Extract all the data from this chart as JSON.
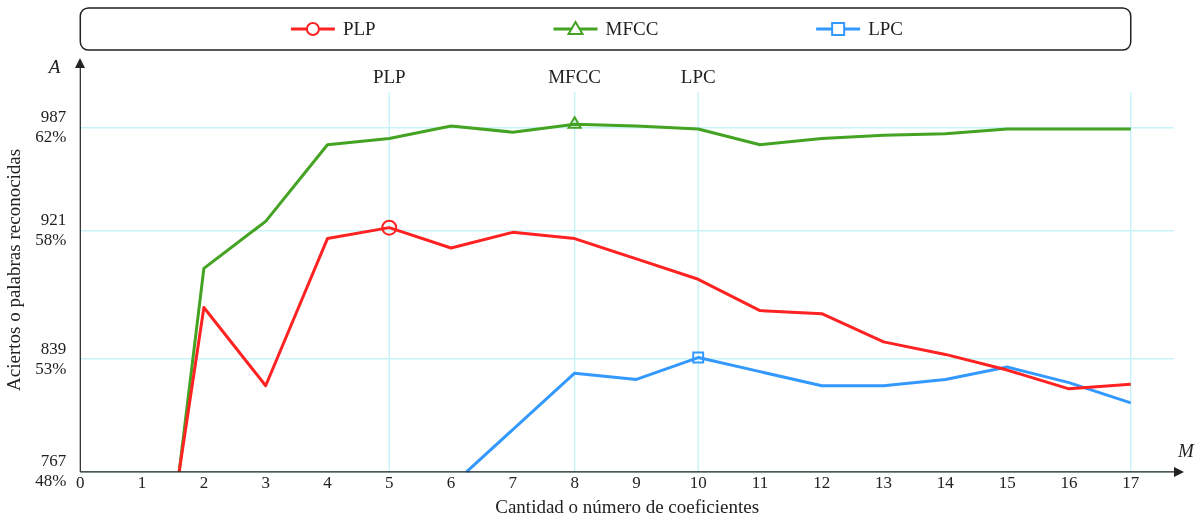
{
  "chart_data": {
    "type": "line",
    "xlabel": "Cantidad o número de coeficientes",
    "y2label": "Aciertos o palabras reconocidas",
    "annotations": [
      "A",
      "M"
    ],
    "xlim": [
      0,
      17.7
    ],
    "xticks": [
      0,
      1,
      2,
      3,
      4,
      5,
      6,
      7,
      8,
      9,
      10,
      11,
      12,
      13,
      14,
      15,
      16,
      17
    ],
    "ylim": [
      767,
      1025
    ],
    "yticks": [
      767,
      839,
      921,
      987
    ],
    "y2lim": [
      48.24,
      64.47
    ],
    "y2ticks": [
      {
        "value": 48.24,
        "label": "48%"
      },
      {
        "value": 52.77,
        "label": "53%"
      },
      {
        "value": 57.92,
        "label": "58%"
      },
      {
        "value": 62.08,
        "label": "62%"
      }
    ],
    "grid": "y",
    "legend": "top",
    "marker": "none",
    "ref_lines": [
      {
        "axis": "x",
        "value": 5,
        "label": "PLP",
        "color": "#c8f4f8"
      },
      {
        "axis": "x",
        "value": 8,
        "label": "MFCC",
        "color": "#c8f4f8"
      },
      {
        "axis": "x",
        "value": 10,
        "label": "LPC",
        "color": "#c8f4f8"
      },
      {
        "axis": "x",
        "value": 17,
        "label": null,
        "color": "#c8f4f8"
      }
    ],
    "series": [
      {
        "name": "PLP",
        "color": "#ff2222",
        "x": [
          1.6,
          2,
          3,
          4,
          5,
          6,
          7,
          8,
          9,
          10,
          11,
          12,
          13,
          14,
          15,
          16,
          17
        ],
        "values": [
          767,
          872,
          822,
          916,
          923,
          910,
          920,
          916,
          903,
          890,
          870,
          868,
          850,
          842,
          832,
          820,
          823
        ]
      },
      {
        "name": "MFCC",
        "color": "#44a322",
        "x": [
          1.6,
          2,
          3,
          4,
          5,
          6,
          7,
          8,
          9,
          10,
          11,
          12,
          13,
          14,
          15,
          16,
          17
        ],
        "values": [
          767,
          897,
          927,
          976,
          980,
          988,
          984,
          989,
          988,
          986,
          976,
          980,
          982,
          983,
          986,
          986,
          986
        ]
      },
      {
        "name": "LPC",
        "color": "#3399ff",
        "x": [
          6.25,
          8,
          9,
          10,
          11,
          12,
          13,
          14,
          15,
          16,
          17
        ],
        "values": [
          767,
          830,
          826,
          840,
          831,
          822,
          822,
          826,
          834,
          824,
          811
        ]
      },
      {
        "type": "scatter",
        "color": "#ff2222",
        "marker": "circle",
        "x": [
          5
        ],
        "values": [
          923
        ]
      },
      {
        "type": "scatter",
        "color": "#44a322",
        "marker": "triangle",
        "x": [
          8
        ],
        "values": [
          989
        ]
      },
      {
        "type": "scatter",
        "color": "#3399ff",
        "marker": "square",
        "x": [
          10
        ],
        "values": [
          840
        ]
      }
    ]
  }
}
